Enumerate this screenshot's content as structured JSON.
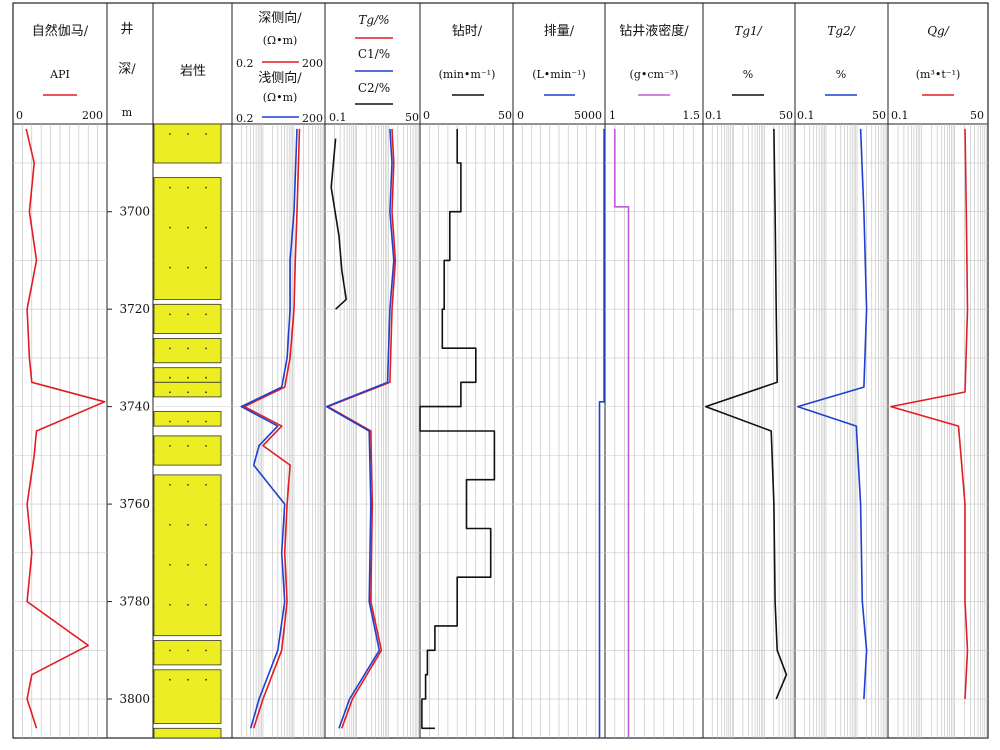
{
  "depth_track": {
    "header_1": "井",
    "header_2": "深/",
    "header_3": "m",
    "ticks": [
      3700,
      3720,
      3740,
      3760,
      3780,
      3800
    ]
  },
  "lithology_track": {
    "header": "岩性"
  },
  "gr_track": {
    "header": "自然伽马/",
    "unit": "API",
    "scale_min": "0",
    "scale_max": "200",
    "color": "#e31b23"
  },
  "res_track": {
    "deep_header": "深侧向/",
    "deep_unit": "(Ω•m)",
    "deep_min": "0.2",
    "deep_max": "200",
    "deep_color": "#e31b23",
    "shallow_header": "浅侧向/",
    "shallow_unit": "(Ω•m)",
    "shallow_min": "0.2",
    "shallow_max": "200",
    "shallow_color": "#1f3fd0"
  },
  "gas_track": {
    "tg": "Tg/%",
    "c1": "C1/%",
    "c2": "C2/%",
    "min": "0.1",
    "max": "50",
    "tg_color": "#e31b23",
    "c1_color": "#1f3fd0",
    "c2_color": "#111111"
  },
  "drilltime_track": {
    "header": "钻时/",
    "unit": "(min•m⁻¹)",
    "min": "0",
    "max": "50",
    "color": "#111111"
  },
  "flow_track": {
    "header": "排量/",
    "unit": "(L•min⁻¹)",
    "min": "0",
    "max": "5000",
    "color": "#1f3fd0"
  },
  "density_track": {
    "header": "钻井液密度/",
    "unit": "(g•cm⁻³)",
    "min": "1",
    "max": "1.5",
    "color": "#c05ad8"
  },
  "tg1_track": {
    "header": "Tg1/",
    "unit": "%",
    "min": "0.1",
    "max": "50",
    "color": "#111111"
  },
  "tg2_track": {
    "header": "Tg2/",
    "unit": "%",
    "min": "0.1",
    "max": "50",
    "color": "#1f3fd0"
  },
  "qg_track": {
    "header": "Qg/",
    "unit": "(m³•t⁻¹)",
    "min": "0.1",
    "max": "50",
    "color": "#e31b23"
  },
  "chart_data": {
    "type": "line",
    "depth_range": [
      3682,
      3808
    ],
    "depth_ticks": [
      3700,
      3720,
      3740,
      3760,
      3780,
      3800
    ],
    "lithology_sandstone": [
      [
        3682,
        3690
      ],
      [
        3693,
        3718
      ],
      [
        3719,
        3725
      ],
      [
        3726,
        3731
      ],
      [
        3732,
        3735
      ],
      [
        3735,
        3738
      ],
      [
        3741,
        3744
      ],
      [
        3746,
        3752
      ],
      [
        3754,
        3787
      ],
      [
        3788,
        3793
      ],
      [
        3794,
        3805
      ],
      [
        3806,
        3808
      ]
    ],
    "series": [
      {
        "name": "自然伽马",
        "unit": "API",
        "depth": [
          3683,
          3690,
          3700,
          3710,
          3720,
          3730,
          3735,
          3739,
          3745,
          3750,
          3760,
          3770,
          3780,
          3789,
          3795,
          3800,
          3806
        ],
        "values": [
          28,
          45,
          35,
          50,
          30,
          35,
          40,
          195,
          50,
          45,
          30,
          40,
          30,
          160,
          40,
          30,
          50
        ]
      },
      {
        "name": "深侧向",
        "unit": "Ω•m",
        "depth": [
          3683,
          3700,
          3710,
          3720,
          3730,
          3736,
          3740,
          3744,
          3748,
          3752,
          3760,
          3770,
          3780,
          3790,
          3800,
          3806
        ],
        "values": [
          30,
          25,
          22,
          20,
          15,
          10,
          0.5,
          8,
          2,
          15,
          12,
          10,
          12,
          8,
          2,
          1
        ]
      },
      {
        "name": "浅侧向",
        "unit": "Ω•m",
        "depth": [
          3683,
          3700,
          3710,
          3720,
          3730,
          3736,
          3740,
          3744,
          3748,
          3752,
          3760,
          3770,
          3780,
          3790,
          3800,
          3806
        ],
        "values": [
          25,
          20,
          15,
          15,
          12,
          8,
          0.4,
          6,
          1.5,
          1,
          10,
          8,
          10,
          6,
          1.5,
          0.8
        ]
      },
      {
        "name": "Tg",
        "unit": "%",
        "depth": [
          3683,
          3690,
          3700,
          3710,
          3720,
          3735,
          3740,
          3745,
          3760,
          3780,
          3790,
          3800,
          3806
        ],
        "values": [
          8,
          9,
          8,
          10,
          8,
          7,
          0.12,
          2,
          2.2,
          2,
          4,
          0.6,
          0.3
        ]
      },
      {
        "name": "C1",
        "unit": "%",
        "depth": [
          3683,
          3690,
          3700,
          3710,
          3720,
          3735,
          3740,
          3745,
          3760,
          3780,
          3790,
          3800,
          3806
        ],
        "values": [
          7,
          8,
          7,
          9,
          7,
          6,
          0.11,
          1.8,
          2,
          1.8,
          3.5,
          0.5,
          0.25
        ]
      },
      {
        "name": "C2",
        "unit": "%",
        "depth": [
          3685,
          3695,
          3705,
          3712,
          3718,
          3720
        ],
        "values": [
          0.2,
          0.15,
          0.25,
          0.3,
          0.4,
          0.2
        ]
      },
      {
        "name": "钻时",
        "unit": "min•m⁻¹",
        "depth": [
          3683,
          3690,
          3700,
          3710,
          3720,
          3728,
          3735,
          3740,
          3745,
          3755,
          3765,
          3775,
          3785,
          3790,
          3795,
          3800,
          3806
        ],
        "values": [
          20,
          22,
          16,
          13,
          12,
          30,
          22,
          0,
          40,
          25,
          38,
          20,
          8,
          4,
          3,
          1,
          8
        ]
      },
      {
        "name": "排量",
        "unit": "L•min⁻¹",
        "depth": [
          3683,
          3738,
          3739,
          3780,
          3808
        ],
        "values": [
          4950,
          4950,
          4700,
          4700,
          4700
        ]
      },
      {
        "name": "钻井液密度",
        "unit": "g•cm⁻³",
        "depth": [
          3683,
          3698,
          3699,
          3808
        ],
        "values": [
          1.05,
          1.05,
          1.12,
          1.12
        ]
      },
      {
        "name": "Tg1",
        "unit": "%",
        "depth": [
          3683,
          3700,
          3720,
          3735,
          3740,
          3745,
          3760,
          3780,
          3790,
          3795,
          3800
        ],
        "values": [
          12,
          13,
          14,
          15,
          0.12,
          10,
          12,
          13,
          15,
          28,
          14
        ]
      },
      {
        "name": "Tg2",
        "unit": "%",
        "depth": [
          3683,
          3700,
          3720,
          3736,
          3740,
          3744,
          3760,
          3780,
          3790,
          3800
        ],
        "values": [
          8,
          10,
          12,
          10,
          0.12,
          6,
          8,
          9,
          12,
          10
        ]
      },
      {
        "name": "Qg",
        "unit": "m³•t⁻¹",
        "depth": [
          3683,
          3700,
          3720,
          3737,
          3740,
          3744,
          3760,
          3780,
          3790,
          3800
        ],
        "values": [
          12,
          13,
          14,
          12,
          0.12,
          8,
          12,
          12,
          14,
          12
        ]
      }
    ]
  }
}
